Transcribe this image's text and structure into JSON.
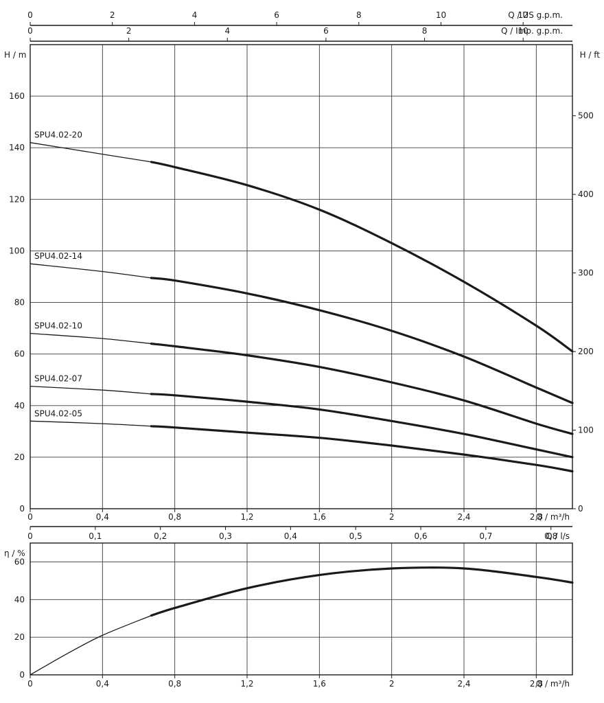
{
  "chart_data": [
    {
      "type": "line",
      "panel": "head",
      "x_unit_label": "Q / m³/h",
      "y_left_label": "H / m",
      "y_right_label": "H / ft",
      "xlim": [
        0,
        3.0
      ],
      "ylim": [
        0,
        180
      ],
      "x_ticks": [
        "0",
        "0,4",
        "0,8",
        "1,2",
        "1,6",
        "2",
        "2,4",
        "2,8"
      ],
      "y_ticks": [
        "0",
        "20",
        "40",
        "60",
        "80",
        "100",
        "120",
        "140",
        "160"
      ],
      "y_right_ticks": [
        "0",
        "100",
        "200",
        "300",
        "400",
        "500"
      ],
      "top_axes": [
        {
          "label": "Q / US g.p.m.",
          "ticks": [
            "0",
            "2",
            "4",
            "6",
            "8",
            "10",
            "12"
          ],
          "max": 13.2
        },
        {
          "label": "Q / Imp. g.p.m.",
          "ticks": [
            "0",
            "2",
            "4",
            "6",
            "8",
            "10"
          ],
          "max": 11.0
        }
      ],
      "bottom_secondary_axis": {
        "label": "Q / l/s",
        "ticks": [
          "0",
          "0,1",
          "0,2",
          "0,3",
          "0,4",
          "0,5",
          "0,6",
          "0,7",
          "0,8"
        ],
        "max": 0.833
      },
      "thick_from_x": 0.67,
      "x": [
        0,
        0.4,
        0.67,
        0.8,
        1.2,
        1.6,
        2.0,
        2.4,
        2.8,
        3.0
      ],
      "series": [
        {
          "name": "SPU4.02-20",
          "values": [
            142,
            137.5,
            134.5,
            132.5,
            125.5,
            116,
            103,
            88,
            71,
            61
          ]
        },
        {
          "name": "SPU4.02-14",
          "values": [
            95,
            92,
            89.5,
            88.5,
            83.5,
            77,
            69,
            59,
            47,
            41
          ]
        },
        {
          "name": "SPU4.02-10",
          "values": [
            68,
            66,
            64,
            63,
            59.5,
            55,
            49,
            42,
            33,
            29
          ]
        },
        {
          "name": "SPU4.02-07",
          "values": [
            47.5,
            46,
            44.5,
            44,
            41.5,
            38.5,
            34,
            29,
            23,
            20
          ]
        },
        {
          "name": "SPU4.02-05",
          "values": [
            34,
            33,
            32,
            31.5,
            29.5,
            27.5,
            24.5,
            21,
            17,
            14.5
          ]
        }
      ]
    },
    {
      "type": "line",
      "panel": "efficiency",
      "x_unit_label": "Q / m³/h",
      "y_label": "η / %",
      "xlim": [
        0,
        3.0
      ],
      "ylim": [
        0,
        70
      ],
      "x_ticks": [
        "0",
        "0,4",
        "0,8",
        "1,2",
        "1,6",
        "2",
        "2,4",
        "2,8"
      ],
      "y_ticks": [
        "0",
        "20",
        "40",
        "60"
      ],
      "thick_from_x": 0.67,
      "x": [
        0,
        0.2,
        0.4,
        0.67,
        0.8,
        1.2,
        1.6,
        2.0,
        2.4,
        2.8,
        3.0
      ],
      "series": [
        {
          "name": "",
          "values": [
            0,
            11,
            21,
            31.5,
            35.5,
            46,
            53,
            56.5,
            56.5,
            52,
            49
          ]
        }
      ]
    }
  ]
}
